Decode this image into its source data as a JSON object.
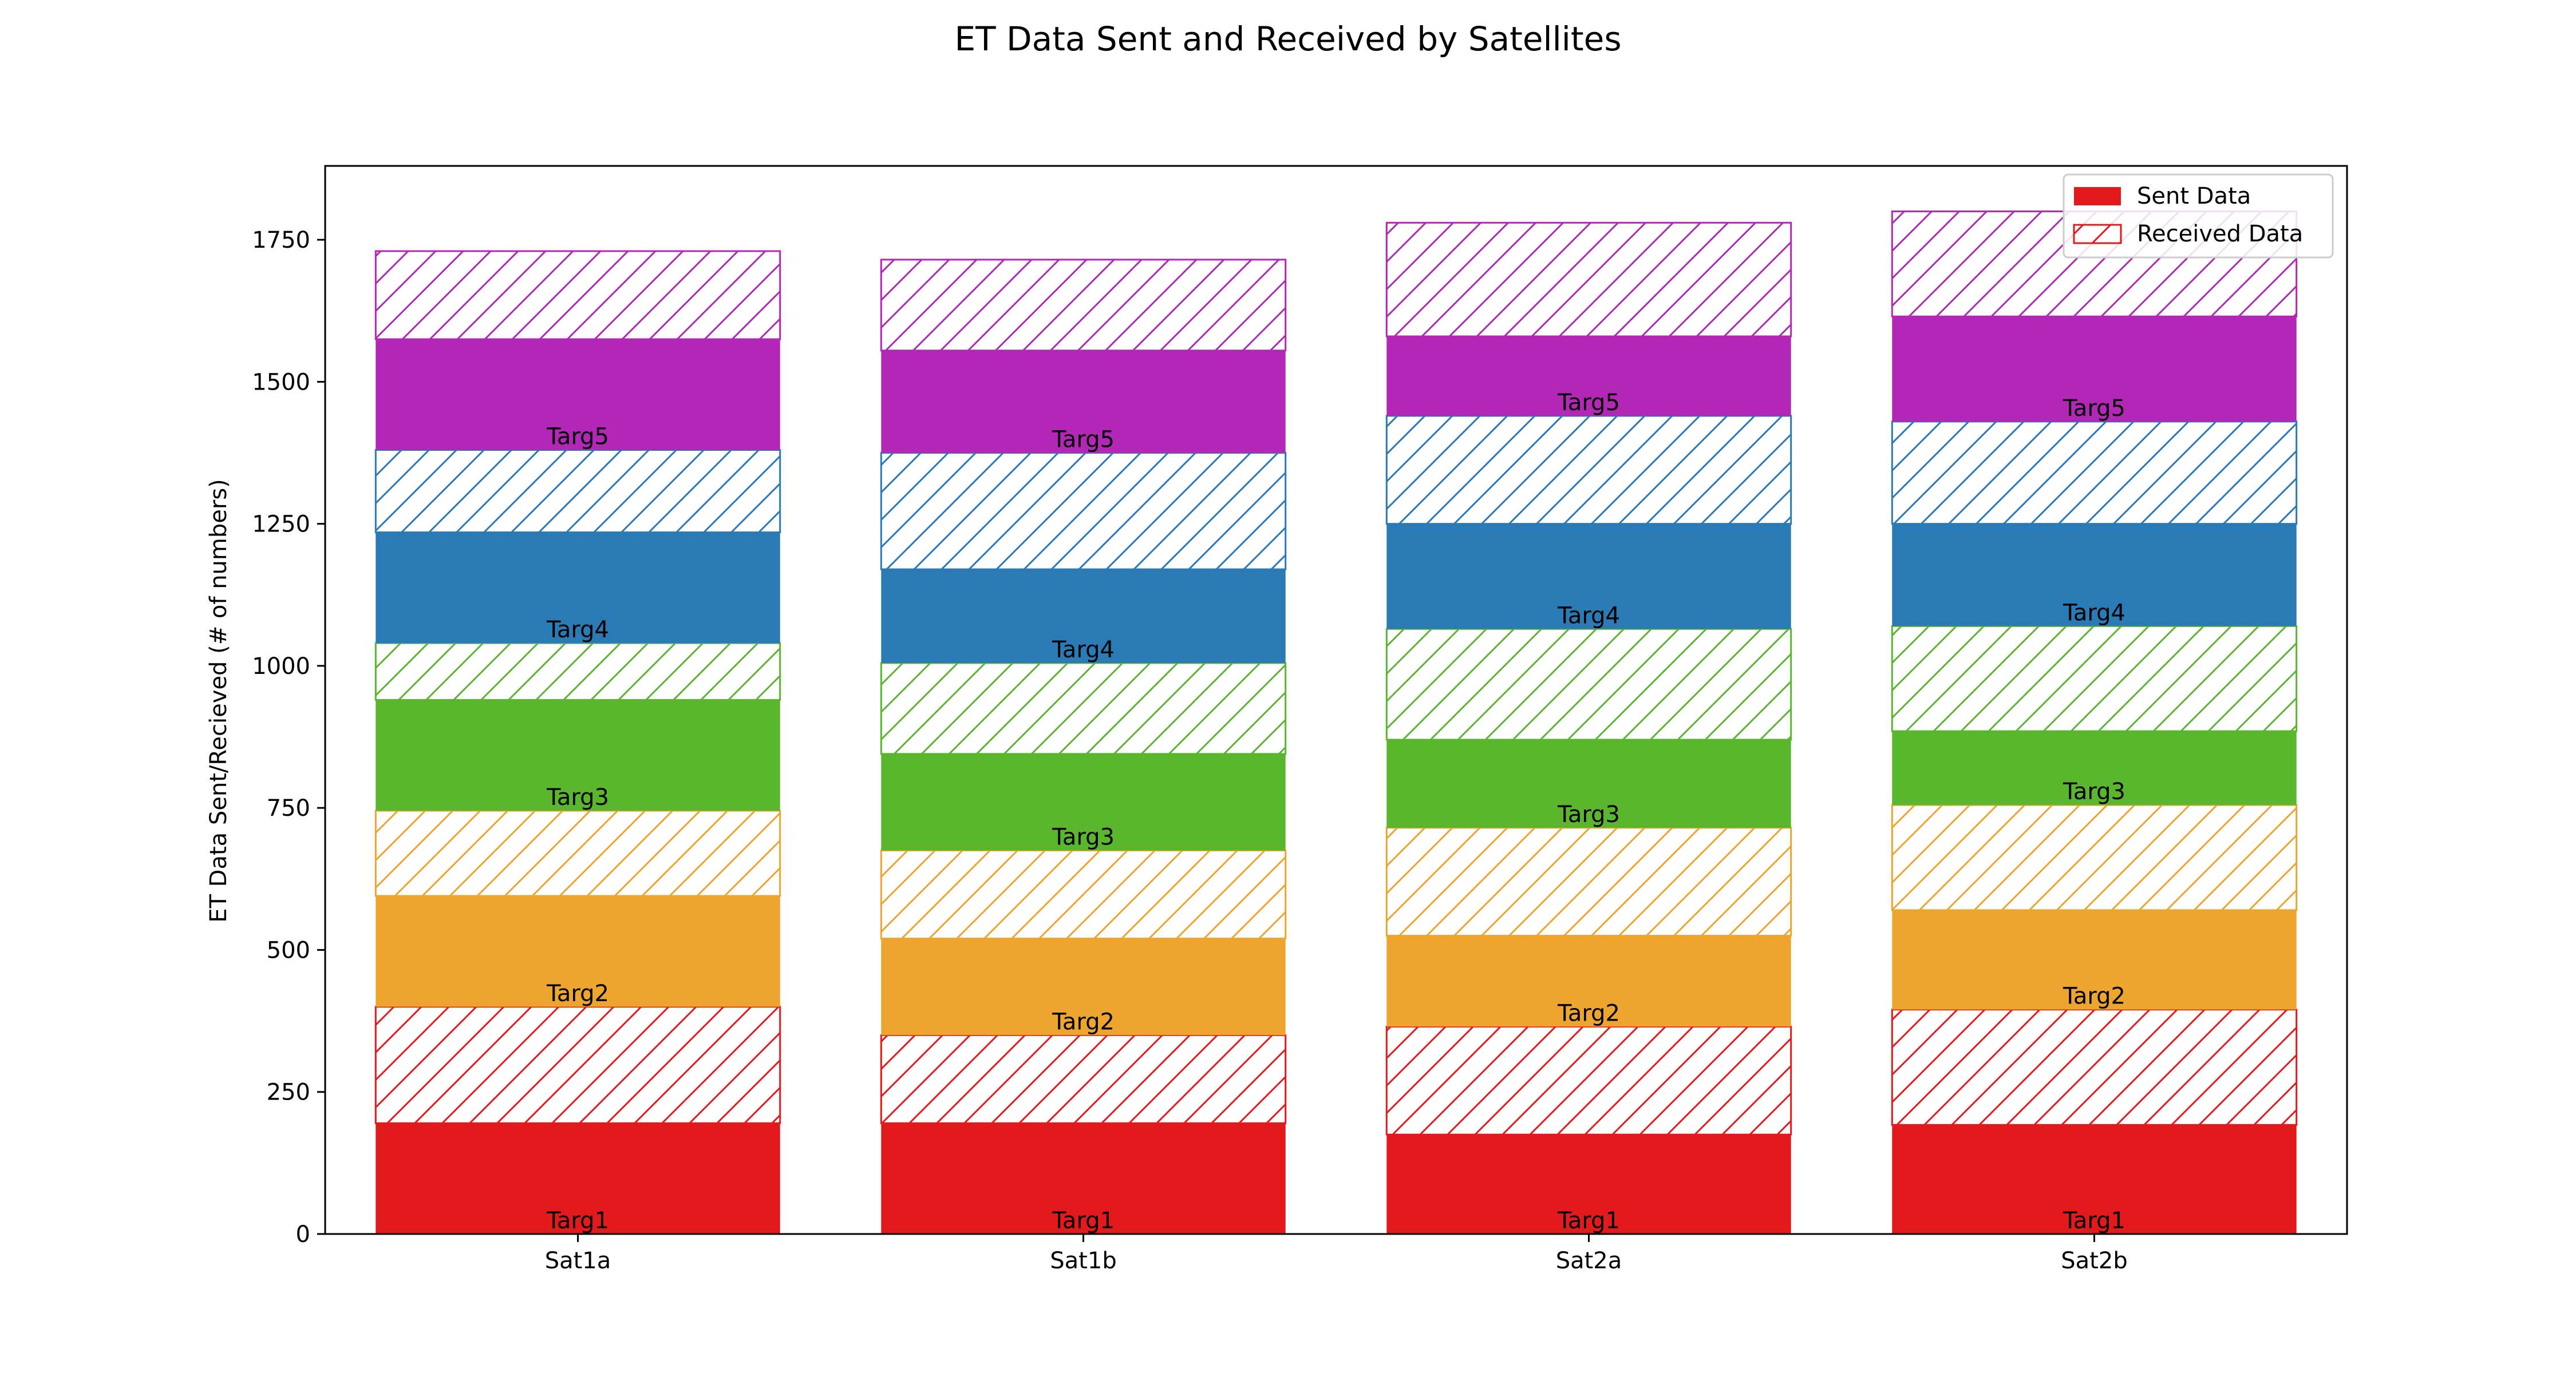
{
  "chart_data": {
    "type": "bar",
    "stacked": true,
    "title": "ET Data Sent and Received by Satellites",
    "xlabel": "",
    "ylabel": "ET Data Sent/Recieved (# of numbers)",
    "categories": [
      "Sat1a",
      "Sat1b",
      "Sat2a",
      "Sat2b"
    ],
    "ylim": [
      0,
      1880
    ],
    "yticks": [
      0,
      250,
      500,
      750,
      1000,
      1250,
      1500,
      1750
    ],
    "grid": false,
    "legend": {
      "placement": "top-right",
      "entries": [
        {
          "label": "Sent Data",
          "style": "solid",
          "color": "#e31a1c"
        },
        {
          "label": "Received Data",
          "style": "hatched",
          "color": "#e31a1c"
        }
      ]
    },
    "targets": [
      {
        "name": "Targ1",
        "color": "#e31a1c",
        "sent": [
          195,
          195,
          175,
          192
        ],
        "received": [
          205,
          155,
          190,
          203
        ]
      },
      {
        "name": "Targ2",
        "color": "#eda52e",
        "sent": [
          195,
          170,
          160,
          175
        ],
        "received": [
          150,
          155,
          190,
          185
        ]
      },
      {
        "name": "Targ3",
        "color": "#59b62d",
        "sent": [
          195,
          170,
          155,
          130
        ],
        "received": [
          100,
          160,
          195,
          185
        ]
      },
      {
        "name": "Targ4",
        "color": "#2a7ab5",
        "sent": [
          195,
          165,
          185,
          180
        ],
        "received": [
          145,
          205,
          190,
          180
        ]
      },
      {
        "name": "Targ5",
        "color": "#b227b6",
        "sent": [
          195,
          180,
          140,
          185
        ],
        "received": [
          155,
          160,
          200,
          185
        ]
      }
    ]
  }
}
